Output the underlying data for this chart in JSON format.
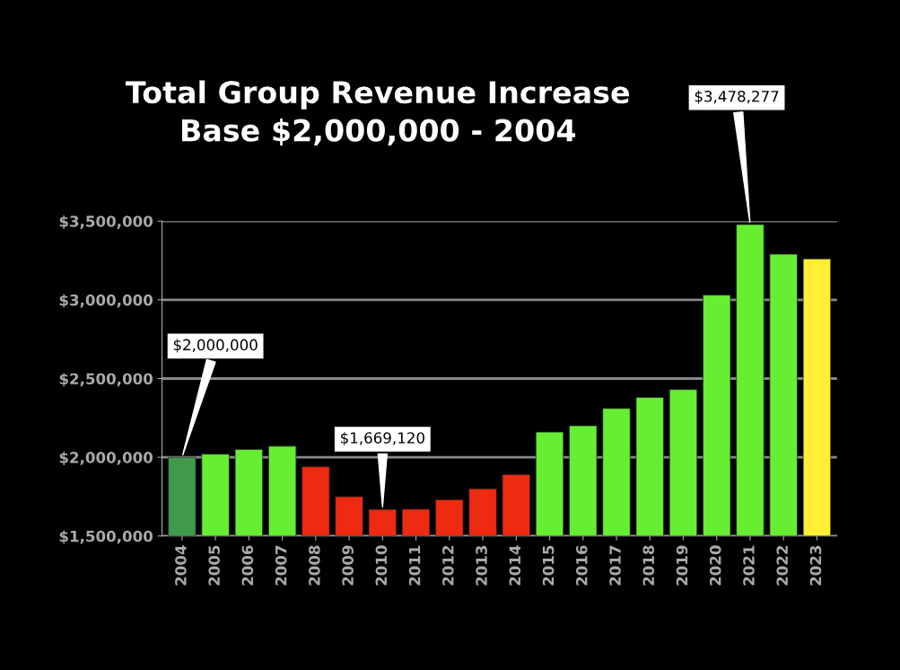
{
  "chart_data": {
    "type": "bar",
    "title": "Total Group Revenue Increase\nBase $2,000,000 - 2004",
    "categories": [
      "2004",
      "2005",
      "2006",
      "2007",
      "2008",
      "2009",
      "2010",
      "2011",
      "2012",
      "2013",
      "2014",
      "2015",
      "2016",
      "2017",
      "2018",
      "2019",
      "2020",
      "2021",
      "2022",
      "2023"
    ],
    "values": [
      2000000,
      2020000,
      2050000,
      2070000,
      1940000,
      1750000,
      1669120,
      1670000,
      1730000,
      1800000,
      1890000,
      2160000,
      2200000,
      2310000,
      2380000,
      2430000,
      3030000,
      3478277,
      3290000,
      3260000
    ],
    "colors": [
      "#3f9a4c",
      "#66ee33",
      "#66ee33",
      "#66ee33",
      "#ee2a10",
      "#ee2a10",
      "#ee2a10",
      "#ee2a10",
      "#ee2a10",
      "#ee2a10",
      "#ee2a10",
      "#66ee33",
      "#66ee33",
      "#66ee33",
      "#66ee33",
      "#66ee33",
      "#66ee33",
      "#66ee33",
      "#66ee33",
      "#ffee33"
    ],
    "ylim": [
      1500000,
      3500000
    ],
    "yticks": [
      {
        "value": 1500000,
        "label": "$1,500,000"
      },
      {
        "value": 2000000,
        "label": "$2,000,000"
      },
      {
        "value": 2500000,
        "label": "$2,500,000"
      },
      {
        "value": 3000000,
        "label": "$3,000,000"
      },
      {
        "value": 3500000,
        "label": "$3,500,000"
      }
    ],
    "grid": "y",
    "annotations": [
      {
        "text": "$2,000,000",
        "x": "2004",
        "y": 2000000
      },
      {
        "text": "$1,669,120",
        "x": "2010",
        "y": 1669120
      },
      {
        "text": "$3,478,277",
        "x": "2021",
        "y": 3478277
      }
    ]
  }
}
